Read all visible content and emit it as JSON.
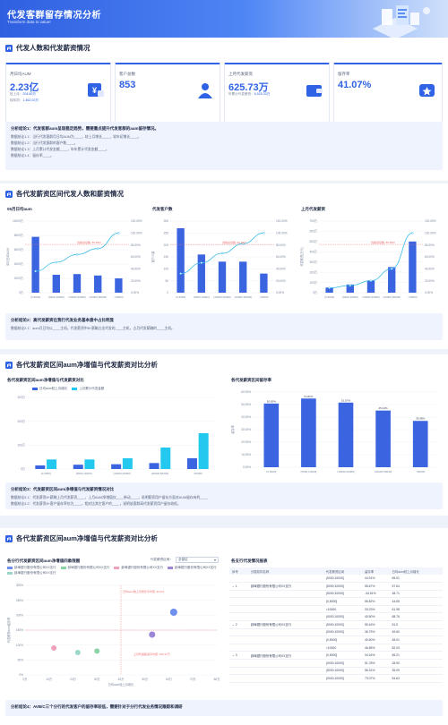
{
  "header": {
    "title": "代发客群留存情况分析",
    "subtitle": "Transform data to value!"
  },
  "sec1": {
    "title": "代发人数和代发薪资情况",
    "kpis": [
      {
        "label": "月日均AUM",
        "value": "2.23亿",
        "sub1_label": "较上月：",
        "sub1_value": "204.80万",
        "sub2_label": "较年初：",
        "sub2_value": "1,462.02万"
      },
      {
        "label": "客户总数",
        "value": "853"
      },
      {
        "label": "上月代发薪资",
        "value": "625.73万",
        "sub1_label": "年累计代发薪资：",
        "sub1_value": "6,525.33万"
      },
      {
        "label": "留存率",
        "value": "41.07%"
      }
    ],
    "note": {
      "title": "分析结论1：代发客群aum呈现稳定趋势，需要重点提升代发客群的aum留存情况。",
      "lines": [
        "数据结论1.1：当行代发客群月日均AUM为____，较上月增长____，较年初增长____。",
        "数据结论1.2：当行代发客群的客户数____。",
        "数据结论1.3：上月累计代发金额____，年年累计代发金额____。",
        "数据结论1.4：留存率____。"
      ]
    }
  },
  "sec2": {
    "title": "各代发薪资区间代发人数和薪资情况",
    "charts": [
      {
        "title": "05月日均aum",
        "ylabel": "年均日均AUM",
        "yticks": [
          "10000万",
          "8000万",
          "6000万",
          "4000万",
          "2000万",
          "0万"
        ],
        "y2ticks": [
          "120.00%",
          "100.00%",
          "80.00%",
          "60.00%",
          "40.00%",
          "20.00%",
          "0.00%"
        ],
        "categories": [
          "(0,5000]",
          "(5000,10000]",
          "(10000,20000]",
          "(20000,50000]",
          ">50000"
        ],
        "ylim": [
          0,
          10000
        ],
        "values": [
          7800,
          2500,
          2600,
          2400,
          2000
        ],
        "cum": [
          36,
          51,
          64,
          74,
          100
        ],
        "mark": "当前总位数: 80.83%",
        "mark_value": 80.83
      },
      {
        "title": "代发客户数",
        "ylabel": "客户人数",
        "yticks": [
          "300",
          "250",
          "200",
          "150",
          "100",
          "50",
          "0"
        ],
        "y2ticks": [
          "120.00%",
          "100.00%",
          "80.00%",
          "60.00%",
          "40.00%",
          "20.00%",
          "0.00%"
        ],
        "categories": [
          "(0,5000]",
          "(5000,10000]",
          "(10000,20000]",
          "(20000,50000]",
          ">50000"
        ],
        "ylim": [
          0,
          300
        ],
        "values": [
          270,
          160,
          130,
          130,
          80
        ],
        "cum": [
          32,
          50,
          66,
          82,
          100
        ],
        "mark": "当前总位数: 80.83%",
        "mark_value": 80.83
      },
      {
        "title": "上月代发薪资",
        "ylabel": "代发薪资(万元)",
        "yticks": [
          "700万",
          "600万",
          "500万",
          "400万",
          "300万",
          "200万",
          "100万",
          "0万"
        ],
        "y2ticks": [
          "120.00%",
          "100.00%",
          "80.00%",
          "60.00%",
          "40.00%",
          "20.00%",
          "0.00%"
        ],
        "categories": [
          "(0,5000]",
          "(5000,10000]",
          "(10000,20000]",
          "(20000,50000]",
          ">50000"
        ],
        "ylim": [
          0,
          700
        ],
        "values": [
          50,
          80,
          120,
          250,
          500
        ],
        "cum": [
          8,
          12,
          20,
          40,
          100
        ],
        "mark": "当前总位数: 80.83%",
        "mark_value": 80.83
      }
    ],
    "note": {
      "title": "分析结论2：高代发薪资在我行代发业务基本盘中占比明显",
      "lines": [
        "数据结论2.1：aum月日均以____主机，代发薪资中8+薪酬占全代发的____主机，占月代发薪酬的____主机。"
      ]
    }
  },
  "sec3": {
    "title": "各代发薪资区间aum净增值与代发薪资对比分析",
    "left": {
      "title": "各代发薪资区间aum净增值与代发薪资对比",
      "legend": [
        "日均aum较上月增长",
        "上月累计代发金额"
      ],
      "yticks": [
        "300万",
        "200万",
        "100万",
        "0万"
      ],
      "categories": [
        "(0,5000]",
        "(5000,10000]",
        "(10000,20000]",
        "(20000,50000]",
        ">50000"
      ],
      "ylim": [
        0,
        300
      ],
      "series1": [
        15,
        18,
        20,
        25,
        45
      ],
      "series2": [
        40,
        40,
        45,
        90,
        150
      ]
    },
    "right": {
      "title": "各代发薪资区间留存率",
      "ylabel": "留存率",
      "yticks": [
        "60.00%",
        "50.00%",
        "40.00%",
        "30.00%",
        "20.00%",
        "10.00%",
        "0.00%"
      ],
      "categories": [
        "(0,5000]",
        "(5000,10000]",
        "(10000,20000]",
        "(20000,50000]",
        ">50000"
      ],
      "ylim": [
        0,
        60
      ],
      "values": [
        50.83,
        54.81,
        51.57,
        45.24,
        36.98
      ],
      "labels": [
        "50.83%",
        "54.81%",
        "51.57%",
        "45.24%",
        "36.98%"
      ]
    },
    "note": {
      "title": "分析结论3：代发薪资区间aum净增值与代发薪资情况对比",
      "lines": [
        "数据结论3.1：代发薪资8+薪酬上月代发薪资____，上月AUM净增值仅____带动____，说明薪资用户留存方面对AUM留存有利____",
        "数据结论3.2：代发薪资8+客户留存率仅为____，相对比其它客户的____，说明该客群高代发薪资用户留存较低。"
      ]
    }
  },
  "sec4": {
    "title": "各代发薪资区间aum净增值与代发薪资对比分析",
    "scatter": {
      "title": "各分行代发薪资区间aum净增值四象限图",
      "select_label": "代发薪资区间：",
      "select_value": "全部区",
      "legend": [
        {
          "name": "蚌埠银行股份有限公司XX支行",
          "color": "#6e8ff0"
        },
        {
          "name": "蚌埠银行股份有限公司XX支行",
          "color": "#8ad3a6"
        },
        {
          "name": "蚌埠银行股份有限公司XX支行",
          "color": "#f0a0b8"
        },
        {
          "name": "蚌埠银行股份有限公司XX支行",
          "color": "#9c86d6"
        },
        {
          "name": "蚌埠银行股份有限公司XX支行",
          "color": "#9ad7c9"
        }
      ],
      "xlabel": "日均aum较上月增长",
      "ylabel": "代发薪资aum留存率",
      "xticks": [
        "0万",
        "10万",
        "20万",
        "30万",
        "40万",
        "50万",
        "60万",
        "70万",
        "80万"
      ],
      "yticks": [
        "300%",
        "250%",
        "200%",
        "150%",
        "100%",
        "50%",
        "0%"
      ],
      "xlim": [
        0,
        80
      ],
      "ylim": [
        0,
        300
      ],
      "hline_label": "日均aum较上月增长平均值: 33.6%",
      "vline_label": "上月代发薪资平均值: 225.37万",
      "points": [
        {
          "x": 62,
          "y": 210,
          "color": "#6e8ff0",
          "size": 4
        },
        {
          "x": 53,
          "y": 135,
          "color": "#9c86d6",
          "size": 3.5
        },
        {
          "x": 30,
          "y": 80,
          "color": "#8ad3a6",
          "size": 3
        },
        {
          "x": 22,
          "y": 75,
          "color": "#9ad7c9",
          "size": 3
        },
        {
          "x": 12,
          "y": 90,
          "color": "#f0a0b8",
          "size": 3
        }
      ]
    },
    "table": {
      "title": "各支行代发情况报表",
      "headers": [
        "序号",
        "分属机构名称",
        "代发薪资区间",
        "日均aum较上月增长",
        "留存率",
        "日均aum较上月增长"
      ],
      "rows": [
        {
          "no": "",
          "org": "",
          "range": "(0000,10000]",
          "a": "",
          "rate": "44.91%",
          "b": "65.01"
        },
        {
          "no": "1",
          "org": "蚌埠银行股份有限公司XX支行",
          "range": "(5000,10000]",
          "a": "",
          "rate": "55.67%",
          "b": "57.64"
        },
        {
          "no": "",
          "org": "",
          "range": "(5000,10000]",
          "a": "",
          "rate": "-34.51%",
          "b": "48.71"
        },
        {
          "no": "",
          "org": "",
          "range": "(0,5000]",
          "a": "",
          "rate": "56.82%",
          "b": "44.65"
        },
        {
          "no": "",
          "org": "",
          "range": ">10000",
          "a": "",
          "rate": "33.23%",
          "b": "61.98"
        },
        {
          "no": "",
          "org": "",
          "range": "(0000,10000]",
          "a": "",
          "rate": "40.50%",
          "b": "68.76"
        },
        {
          "no": "2",
          "org": "蚌埠银行股份有限公司XX支行",
          "range": "(5000,10000]",
          "a": "",
          "rate": "55.16%",
          "b": "51.5"
        },
        {
          "no": "",
          "org": "",
          "range": "(0000,10000]",
          "a": "",
          "rate": "36.79%",
          "b": "49.60"
        },
        {
          "no": "",
          "org": "",
          "range": "(0,5000]",
          "a": "",
          "rate": "40.60%",
          "b": "48.01"
        },
        {
          "no": "",
          "org": "",
          "range": ">10000",
          "a": "",
          "rate": "46.55%",
          "b": "82.03"
        },
        {
          "no": "3",
          "org": "蚌埠银行股份有限公司XX支行",
          "range": "(0,5000]",
          "a": "",
          "rate": "34.16%",
          "b": "65.21"
        },
        {
          "no": "",
          "org": "",
          "range": "(0000,10000]",
          "a": "",
          "rate": "51.78%",
          "b": "28.90"
        },
        {
          "no": "",
          "org": "",
          "range": "(5000,10000]",
          "a": "",
          "rate": "56.31%",
          "b": "35.09"
        },
        {
          "no": "",
          "org": "",
          "range": "(0000,10000]",
          "a": "",
          "rate": "73.07%",
          "b": "54.63"
        }
      ]
    },
    "note": {
      "title": "分析结论4：AVB/C三个分行的代发客户的留存率较低，需要针对于分行代发业务情况跟踪和调研"
    }
  },
  "colors": {
    "primary": "#2f62e5",
    "bar": "#3b64e0",
    "line": "#3bbcea",
    "cyan": "#22c8ee",
    "mark": "#f06b6b"
  }
}
